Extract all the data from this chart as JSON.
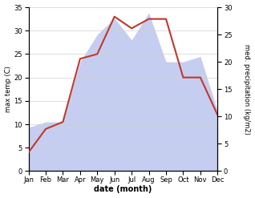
{
  "months": [
    "Jan",
    "Feb",
    "Mar",
    "Apr",
    "May",
    "Jun",
    "Jul",
    "Aug",
    "Sep",
    "Oct",
    "Nov",
    "Dec"
  ],
  "month_x": [
    0,
    1,
    2,
    3,
    4,
    5,
    6,
    7,
    8,
    9,
    10,
    11
  ],
  "temperature": [
    4,
    9,
    10.5,
    24,
    25,
    33,
    30.5,
    32.5,
    32.5,
    20,
    20,
    12
  ],
  "precipitation": [
    8,
    9,
    9,
    20,
    25,
    28,
    24,
    29,
    20,
    20,
    21,
    11
  ],
  "temp_color": "#c0392b",
  "precip_fill_color": "#c5cef0",
  "left_ylim": [
    0,
    35
  ],
  "right_ylim": [
    0,
    30
  ],
  "left_yticks": [
    0,
    5,
    10,
    15,
    20,
    25,
    30,
    35
  ],
  "right_yticks": [
    0,
    5,
    10,
    15,
    20,
    25,
    30
  ],
  "left_ylabel": "max temp (C)",
  "right_ylabel": "med. precipitation (kg/m2)",
  "xlabel": "date (month)",
  "background_color": "#ffffff",
  "grid_color": "#d0d0d0"
}
